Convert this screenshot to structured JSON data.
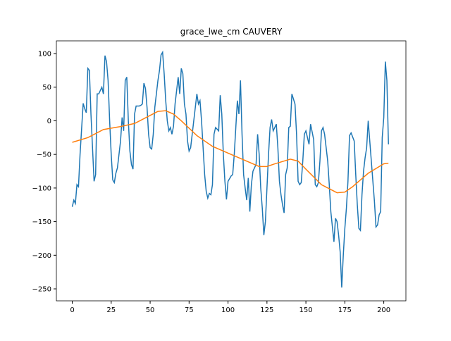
{
  "chart_data": {
    "type": "line",
    "title": "grace_lwe_cm CAUVERY",
    "xlim": [
      -10.2,
      214.2
    ],
    "xticks": [
      0,
      25,
      50,
      75,
      100,
      125,
      150,
      175,
      200
    ],
    "ylim": [
      -267.8,
      118.9
    ],
    "yticks": [
      {
        "value": -250,
        "label": "−250"
      },
      {
        "value": -200,
        "label": "−200"
      },
      {
        "value": -150,
        "label": "−150"
      },
      {
        "value": -100,
        "label": "−100"
      },
      {
        "value": -50,
        "label": "−50"
      },
      0,
      50,
      100
    ],
    "grid": false,
    "series": [
      {
        "color": "#1f77b4",
        "x": [
          0,
          1,
          2,
          3,
          4,
          5,
          7,
          8,
          9,
          10,
          11,
          12,
          13,
          14,
          15,
          16,
          17,
          19,
          20,
          21,
          22,
          23,
          24,
          25,
          26,
          27,
          28,
          29,
          31,
          32,
          33,
          34,
          35,
          36,
          37,
          38,
          39,
          40,
          41,
          43,
          44,
          45,
          46,
          47,
          48,
          49,
          50,
          51,
          52,
          53,
          55,
          56,
          57,
          58,
          59,
          60,
          61,
          62,
          63,
          64,
          65,
          66,
          68,
          69,
          70,
          71,
          72,
          73,
          74,
          75,
          76,
          77,
          78,
          80,
          81,
          82,
          83,
          84,
          85,
          86,
          87,
          88,
          89,
          90,
          91,
          92,
          94,
          95,
          96,
          97,
          98,
          99,
          100,
          102,
          103,
          104,
          106,
          107,
          108,
          109,
          110,
          111,
          112,
          113,
          114,
          115,
          116,
          118,
          119,
          120,
          121,
          122,
          123,
          124,
          125,
          126,
          127,
          128,
          129,
          131,
          132,
          133,
          134,
          135,
          136,
          137,
          138,
          139,
          140,
          141,
          143,
          144,
          145,
          146,
          147,
          148,
          149,
          150,
          151,
          152,
          153,
          155,
          156,
          157,
          158,
          159,
          160,
          161,
          162,
          163,
          164,
          165,
          166,
          168,
          169,
          170,
          171,
          172,
          173,
          174,
          175,
          176,
          177,
          178,
          179,
          181,
          182,
          183,
          184,
          185,
          186,
          187,
          188,
          189,
          190,
          191,
          192,
          194,
          195,
          196,
          197,
          198,
          199,
          200,
          201,
          202,
          203
        ],
        "values": [
          -128,
          -118,
          -123,
          -95,
          -98,
          -50,
          26,
          18,
          12,
          78,
          75,
          10,
          -40,
          -90,
          -80,
          40,
          40,
          50,
          40,
          97,
          88,
          60,
          0,
          -50,
          -88,
          -92,
          -78,
          -70,
          -30,
          5,
          -15,
          60,
          65,
          0,
          -45,
          -65,
          -72,
          10,
          22,
          22,
          23,
          25,
          56,
          48,
          20,
          -20,
          -40,
          -42,
          -20,
          20,
          60,
          75,
          98,
          102,
          70,
          30,
          0,
          -15,
          -10,
          -20,
          -8,
          25,
          65,
          40,
          78,
          70,
          25,
          10,
          -30,
          -45,
          -40,
          -20,
          0,
          40,
          25,
          30,
          0,
          -40,
          -80,
          -105,
          -115,
          -108,
          -110,
          -95,
          -20,
          -10,
          -15,
          38,
          10,
          -50,
          -90,
          -117,
          -90,
          -82,
          -80,
          -50,
          30,
          10,
          60,
          -20,
          -80,
          -100,
          -118,
          -85,
          -135,
          -95,
          -75,
          -65,
          -20,
          -50,
          -100,
          -130,
          -170,
          -150,
          -100,
          -50,
          -10,
          2,
          -15,
          -5,
          -40,
          -90,
          -110,
          -125,
          -137,
          -80,
          -70,
          -10,
          -8,
          40,
          25,
          -20,
          -90,
          -95,
          -92,
          -60,
          -20,
          -15,
          -25,
          -35,
          -5,
          -28,
          -95,
          -98,
          -92,
          -60,
          -15,
          -10,
          -20,
          -40,
          -60,
          -95,
          -135,
          -180,
          -145,
          -150,
          -170,
          -195,
          -248,
          -200,
          -160,
          -130,
          -90,
          -22,
          -18,
          -30,
          -80,
          -125,
          -160,
          -163,
          -110,
          -75,
          -55,
          -40,
          0,
          -30,
          -60,
          -120,
          -158,
          -155,
          -140,
          -135,
          -25,
          5,
          88,
          60,
          -35
        ]
      },
      {
        "color": "#ff7f0e",
        "x": [
          0,
          10,
          20,
          30,
          40,
          50,
          55,
          60,
          65,
          70,
          80,
          90,
          100,
          110,
          120,
          125,
          130,
          140,
          145,
          150,
          160,
          170,
          175,
          180,
          190,
          200,
          203
        ],
        "values": [
          -32,
          -25,
          -13,
          -9,
          -4,
          8,
          14,
          15,
          10,
          0,
          -22,
          -38,
          -48,
          -58,
          -68,
          -68,
          -64,
          -57,
          -60,
          -72,
          -95,
          -107,
          -106,
          -98,
          -78,
          -64,
          -63
        ]
      }
    ]
  }
}
